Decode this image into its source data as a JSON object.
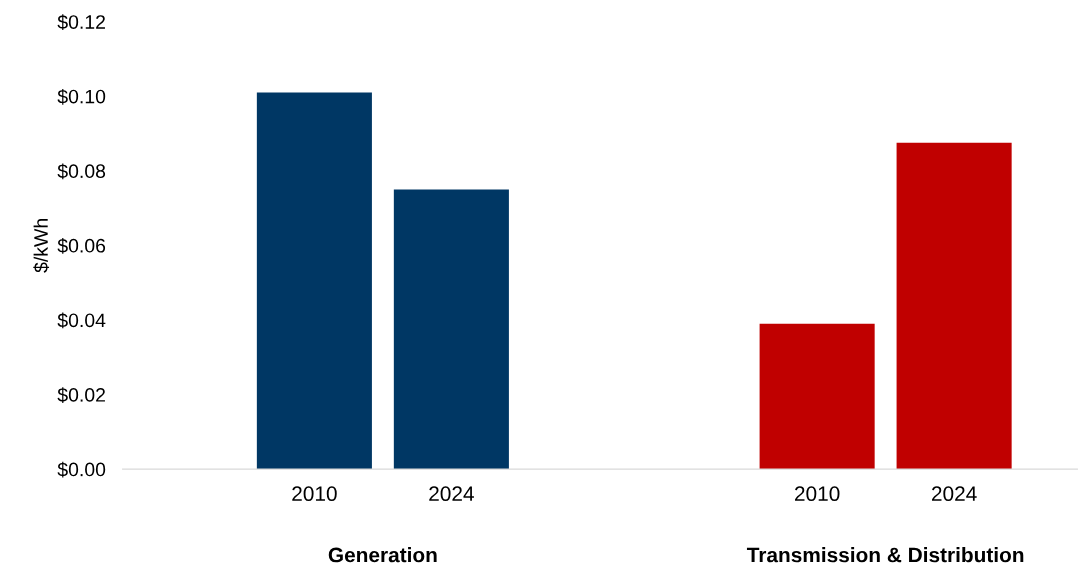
{
  "chart_data": {
    "type": "bar",
    "ylabel": "$/kWh",
    "categories": [
      "2010",
      "2024",
      "2010",
      "2024"
    ],
    "values": [
      0.101,
      0.075,
      0.039,
      0.0875
    ],
    "colors": [
      "#003764",
      "#003764",
      "#c00000",
      "#c00000"
    ],
    "ylim": [
      0,
      0.12
    ],
    "yticks": [
      {
        "value": 0,
        "label": "$0.00"
      },
      {
        "value": 0.02,
        "label": "$0.02"
      },
      {
        "value": 0.04,
        "label": "$0.04"
      },
      {
        "value": 0.06,
        "label": "$0.06"
      },
      {
        "value": 0.08,
        "label": "$0.08"
      },
      {
        "value": 0.1,
        "label": "$0.10"
      },
      {
        "value": 0.12,
        "label": "$0.12"
      }
    ],
    "annotations": [
      "Generation",
      "Transmission & Distribution"
    ],
    "grid": false
  }
}
